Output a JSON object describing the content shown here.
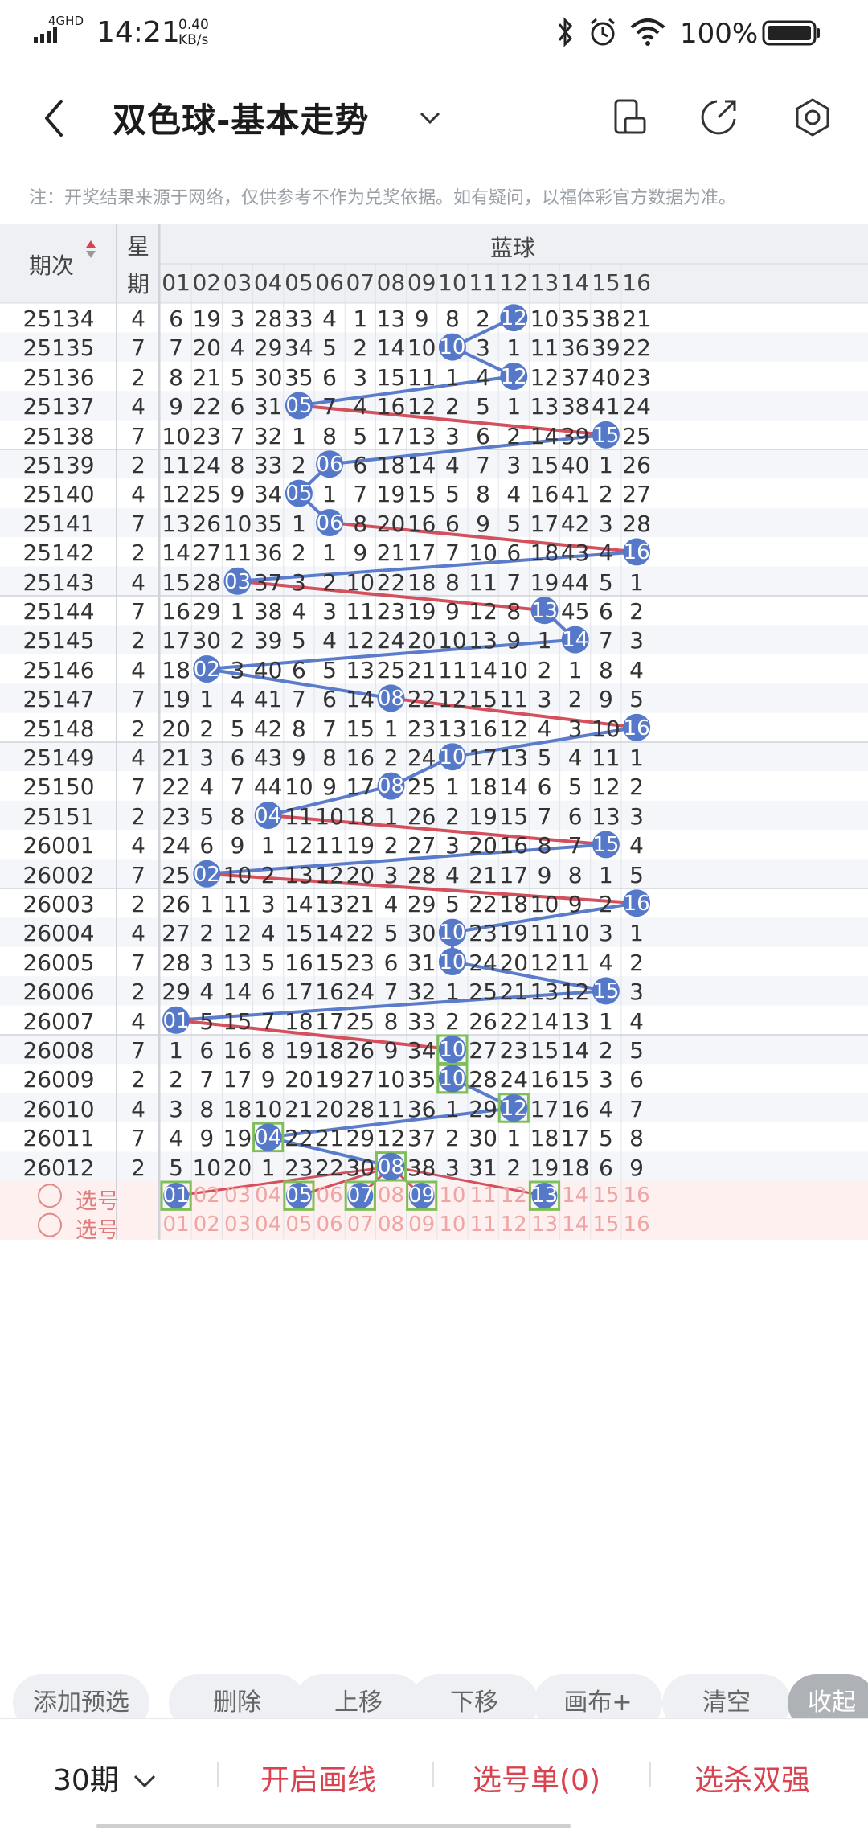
{
  "status_bar": {
    "time": "14:21",
    "network": "4GHD",
    "speed_value": "0.40",
    "speed_unit": "KB/s",
    "battery": "100%"
  },
  "header": {
    "title": "双色球-基本走势",
    "notice": "注：开奖结果来源于网络，仅供参考不作为兑奖依据。如有疑问，以福体彩官方数据为准。"
  },
  "table": {
    "col_period": "期次",
    "col_week_top": "星",
    "col_week_bottom": "期",
    "blue_header": "蓝球",
    "columns": [
      "01",
      "02",
      "03",
      "04",
      "05",
      "06",
      "07",
      "08",
      "09",
      "10",
      "11",
      "12",
      "13",
      "14",
      "15",
      "16"
    ],
    "rows": [
      {
        "period": "25134",
        "week": "4",
        "vals": [
          "6",
          "19",
          "3",
          "28",
          "33",
          "4",
          "1",
          "13",
          "9",
          "8",
          "2",
          "12",
          "10",
          "35",
          "38",
          "21"
        ],
        "hit": 12
      },
      {
        "period": "25135",
        "week": "7",
        "vals": [
          "7",
          "20",
          "4",
          "29",
          "34",
          "5",
          "2",
          "14",
          "10",
          "10",
          "3",
          "1",
          "11",
          "36",
          "39",
          "22"
        ],
        "hit": 10
      },
      {
        "period": "25136",
        "week": "2",
        "vals": [
          "8",
          "21",
          "5",
          "30",
          "35",
          "6",
          "3",
          "15",
          "11",
          "1",
          "4",
          "12",
          "12",
          "37",
          "40",
          "23"
        ],
        "hit": 12
      },
      {
        "period": "25137",
        "week": "4",
        "vals": [
          "9",
          "22",
          "6",
          "31",
          "05",
          "7",
          "4",
          "16",
          "12",
          "2",
          "5",
          "1",
          "13",
          "38",
          "41",
          "24"
        ],
        "hit": 5
      },
      {
        "period": "25138",
        "week": "7",
        "vals": [
          "10",
          "23",
          "7",
          "32",
          "1",
          "8",
          "5",
          "17",
          "13",
          "3",
          "6",
          "2",
          "14",
          "39",
          "15",
          "25"
        ],
        "hit": 15
      },
      {
        "period": "25139",
        "week": "2",
        "vals": [
          "11",
          "24",
          "8",
          "33",
          "2",
          "06",
          "6",
          "18",
          "14",
          "4",
          "7",
          "3",
          "15",
          "40",
          "1",
          "26"
        ],
        "hit": 6
      },
      {
        "period": "25140",
        "week": "4",
        "vals": [
          "12",
          "25",
          "9",
          "34",
          "05",
          "1",
          "7",
          "19",
          "15",
          "5",
          "8",
          "4",
          "16",
          "41",
          "2",
          "27"
        ],
        "hit": 5
      },
      {
        "period": "25141",
        "week": "7",
        "vals": [
          "13",
          "26",
          "10",
          "35",
          "1",
          "06",
          "8",
          "20",
          "16",
          "6",
          "9",
          "5",
          "17",
          "42",
          "3",
          "28"
        ],
        "hit": 6
      },
      {
        "period": "25142",
        "week": "2",
        "vals": [
          "14",
          "27",
          "11",
          "36",
          "2",
          "1",
          "9",
          "21",
          "17",
          "7",
          "10",
          "6",
          "18",
          "43",
          "4",
          "16"
        ],
        "hit": 16
      },
      {
        "period": "25143",
        "week": "4",
        "vals": [
          "15",
          "28",
          "03",
          "37",
          "3",
          "2",
          "10",
          "22",
          "18",
          "8",
          "11",
          "7",
          "19",
          "44",
          "5",
          "1"
        ],
        "hit": 3
      },
      {
        "period": "25144",
        "week": "7",
        "vals": [
          "16",
          "29",
          "1",
          "38",
          "4",
          "3",
          "11",
          "23",
          "19",
          "9",
          "12",
          "8",
          "13",
          "45",
          "6",
          "2"
        ],
        "hit": 13
      },
      {
        "period": "25145",
        "week": "2",
        "vals": [
          "17",
          "30",
          "2",
          "39",
          "5",
          "4",
          "12",
          "24",
          "20",
          "10",
          "13",
          "9",
          "1",
          "14",
          "7",
          "3"
        ],
        "hit": 14
      },
      {
        "period": "25146",
        "week": "4",
        "vals": [
          "18",
          "02",
          "3",
          "40",
          "6",
          "5",
          "13",
          "25",
          "21",
          "11",
          "14",
          "10",
          "2",
          "1",
          "8",
          "4"
        ],
        "hit": 2
      },
      {
        "period": "25147",
        "week": "7",
        "vals": [
          "19",
          "1",
          "4",
          "41",
          "7",
          "6",
          "14",
          "08",
          "22",
          "12",
          "15",
          "11",
          "3",
          "2",
          "9",
          "5"
        ],
        "hit": 8
      },
      {
        "period": "25148",
        "week": "2",
        "vals": [
          "20",
          "2",
          "5",
          "42",
          "8",
          "7",
          "15",
          "1",
          "23",
          "13",
          "16",
          "12",
          "4",
          "3",
          "10",
          "16"
        ],
        "hit": 16
      },
      {
        "period": "25149",
        "week": "4",
        "vals": [
          "21",
          "3",
          "6",
          "43",
          "9",
          "8",
          "16",
          "2",
          "24",
          "10",
          "17",
          "13",
          "5",
          "4",
          "11",
          "1"
        ],
        "hit": 10
      },
      {
        "period": "25150",
        "week": "7",
        "vals": [
          "22",
          "4",
          "7",
          "44",
          "10",
          "9",
          "17",
          "08",
          "25",
          "1",
          "18",
          "14",
          "6",
          "5",
          "12",
          "2"
        ],
        "hit": 8
      },
      {
        "period": "25151",
        "week": "2",
        "vals": [
          "23",
          "5",
          "8",
          "04",
          "11",
          "10",
          "18",
          "1",
          "26",
          "2",
          "19",
          "15",
          "7",
          "6",
          "13",
          "3"
        ],
        "hit": 4
      },
      {
        "period": "26001",
        "week": "4",
        "vals": [
          "24",
          "6",
          "9",
          "1",
          "12",
          "11",
          "19",
          "2",
          "27",
          "3",
          "20",
          "16",
          "8",
          "7",
          "15",
          "4"
        ],
        "hit": 15
      },
      {
        "period": "26002",
        "week": "7",
        "vals": [
          "25",
          "02",
          "10",
          "2",
          "13",
          "12",
          "20",
          "3",
          "28",
          "4",
          "21",
          "17",
          "9",
          "8",
          "1",
          "5"
        ],
        "hit": 2
      },
      {
        "period": "26003",
        "week": "2",
        "vals": [
          "26",
          "1",
          "11",
          "3",
          "14",
          "13",
          "21",
          "4",
          "29",
          "5",
          "22",
          "18",
          "10",
          "9",
          "2",
          "16"
        ],
        "hit": 16
      },
      {
        "period": "26004",
        "week": "4",
        "vals": [
          "27",
          "2",
          "12",
          "4",
          "15",
          "14",
          "22",
          "5",
          "30",
          "10",
          "23",
          "19",
          "11",
          "10",
          "3",
          "1"
        ],
        "hit": 10
      },
      {
        "period": "26005",
        "week": "7",
        "vals": [
          "28",
          "3",
          "13",
          "5",
          "16",
          "15",
          "23",
          "6",
          "31",
          "10",
          "24",
          "20",
          "12",
          "11",
          "4",
          "2"
        ],
        "hit": 10
      },
      {
        "period": "26006",
        "week": "2",
        "vals": [
          "29",
          "4",
          "14",
          "6",
          "17",
          "16",
          "24",
          "7",
          "32",
          "1",
          "25",
          "21",
          "13",
          "12",
          "15",
          "3"
        ],
        "hit": 15
      },
      {
        "period": "26007",
        "week": "4",
        "vals": [
          "01",
          "5",
          "15",
          "7",
          "18",
          "17",
          "25",
          "8",
          "33",
          "2",
          "26",
          "22",
          "14",
          "13",
          "1",
          "4"
        ],
        "hit": 1
      },
      {
        "period": "26008",
        "week": "7",
        "vals": [
          "1",
          "6",
          "16",
          "8",
          "19",
          "18",
          "26",
          "9",
          "34",
          "10",
          "27",
          "23",
          "15",
          "14",
          "2",
          "5"
        ],
        "hit": 10
      },
      {
        "period": "26009",
        "week": "2",
        "vals": [
          "2",
          "7",
          "17",
          "9",
          "20",
          "19",
          "27",
          "10",
          "35",
          "10",
          "28",
          "24",
          "16",
          "15",
          "3",
          "6"
        ],
        "hit": 10
      },
      {
        "period": "26010",
        "week": "4",
        "vals": [
          "3",
          "8",
          "18",
          "10",
          "21",
          "20",
          "28",
          "11",
          "36",
          "1",
          "29",
          "12",
          "17",
          "16",
          "4",
          "7"
        ],
        "hit": 12
      },
      {
        "period": "26011",
        "week": "7",
        "vals": [
          "4",
          "9",
          "19",
          "04",
          "22",
          "21",
          "29",
          "12",
          "37",
          "2",
          "30",
          "1",
          "18",
          "17",
          "5",
          "8"
        ],
        "hit": 4
      },
      {
        "period": "26012",
        "week": "2",
        "vals": [
          "5",
          "10",
          "20",
          "1",
          "23",
          "22",
          "30",
          "08",
          "38",
          "3",
          "31",
          "2",
          "19",
          "18",
          "6",
          "9"
        ],
        "hit": 8
      }
    ],
    "select_rows": [
      {
        "label": "选号",
        "selected": [
          1,
          5,
          7,
          9,
          13
        ]
      },
      {
        "label": "选号",
        "selected": []
      }
    ]
  },
  "toolbar": [
    "添加预选",
    "删除",
    "上移",
    "下移",
    "画布+",
    "清空",
    "收起"
  ],
  "bottom_bar": {
    "periods": "30期",
    "draw": "开启画线",
    "picklist": "选号单(0)",
    "filter": "选杀双强"
  },
  "colors": {
    "ball": "#5578c8",
    "line_blue": "#5b7ccb",
    "line_red": "#d4505c",
    "accent_red": "#d9434f",
    "highlight_box": "#7fbf5a"
  }
}
